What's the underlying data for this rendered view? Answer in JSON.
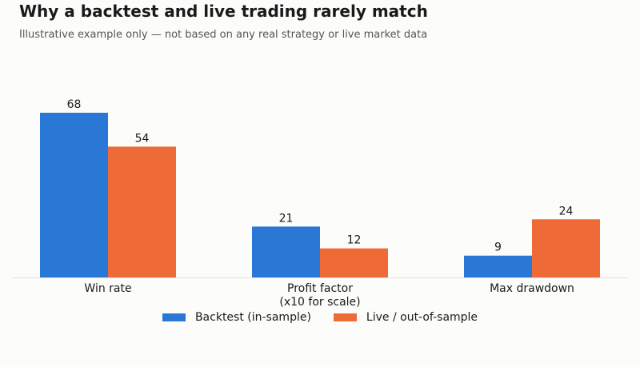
{
  "title": "Why a backtest and live trading rarely match",
  "subtitle": "Illustrative example only — not based on any real strategy or live market data",
  "chart_data": {
    "type": "bar",
    "title": "Why a backtest and live trading rarely match",
    "subtitle": "Illustrative example only — not based on any real strategy or live market data",
    "categories": [
      [
        "Win rate"
      ],
      [
        "Profit factor",
        "(x10 for scale)"
      ],
      [
        "Max drawdown"
      ]
    ],
    "series": [
      {
        "name": "Backtest (in-sample)",
        "color": "#2a78d6",
        "values": [
          68,
          21,
          9
        ]
      },
      {
        "name": "Live / out-of-sample",
        "color": "#ee6a36",
        "values": [
          54,
          12,
          24
        ]
      }
    ],
    "xlabel": "",
    "ylabel": "",
    "ylim": [
      0,
      68
    ],
    "grid": false,
    "legend": "bottom-center",
    "data_labels": true
  }
}
